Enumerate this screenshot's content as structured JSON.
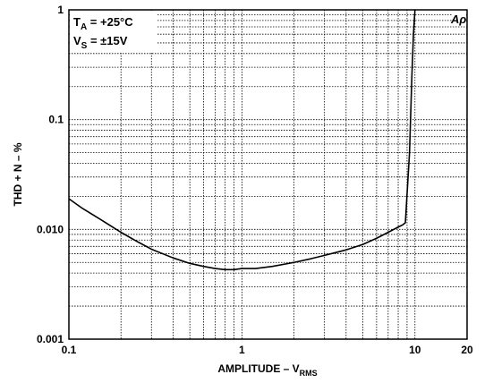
{
  "chart_data": {
    "type": "line",
    "xscale": "log",
    "yscale": "log",
    "xlim": [
      0.1,
      20
    ],
    "ylim": [
      0.001,
      1
    ],
    "grid": true,
    "xlabel": {
      "main": "AMPLITUDE – V",
      "sub": "RMS"
    },
    "ylabel": "THD + N – %",
    "xticks": [
      {
        "v": 0.1,
        "label": "0.1"
      },
      {
        "v": 1,
        "label": "1"
      },
      {
        "v": 10,
        "label": "10"
      },
      {
        "v": 20,
        "label": "20"
      }
    ],
    "yticks": [
      {
        "v": 0.001,
        "label": "0.001"
      },
      {
        "v": 0.01,
        "label": "0.010"
      },
      {
        "v": 0.1,
        "label": "0.1"
      },
      {
        "v": 1,
        "label": "1"
      }
    ],
    "annotations": {
      "ta_main": "T",
      "ta_sub": "A",
      "ta_rest": " = +25°C",
      "vs_main": "V",
      "vs_sub": "S",
      "vs_rest": " = ±15V",
      "corner_logo": "Aρ"
    },
    "series": [
      {
        "x": [
          0.1,
          0.12,
          0.15,
          0.2,
          0.25,
          0.3,
          0.4,
          0.5,
          0.6,
          0.7,
          0.8,
          0.9,
          1.0,
          1.2,
          1.5,
          2,
          2.5,
          3,
          4,
          5,
          6,
          7,
          8,
          8.5,
          8.8,
          9.3,
          9.6,
          9.8,
          10
        ],
        "y": [
          0.019,
          0.0155,
          0.0125,
          0.0094,
          0.0077,
          0.0066,
          0.0055,
          0.0049,
          0.0046,
          0.0044,
          0.0043,
          0.0043,
          0.0044,
          0.0044,
          0.0046,
          0.005,
          0.0054,
          0.0058,
          0.0065,
          0.0073,
          0.0083,
          0.0094,
          0.0105,
          0.011,
          0.0115,
          0.05,
          0.25,
          0.6,
          1.0
        ]
      }
    ]
  }
}
